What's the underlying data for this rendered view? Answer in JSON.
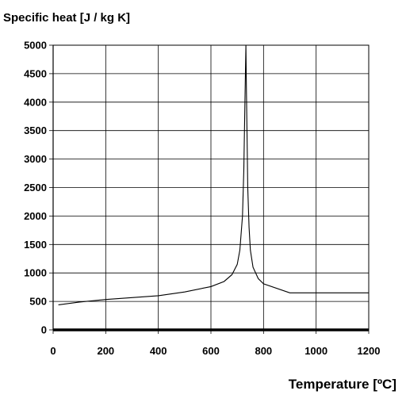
{
  "chart_data": {
    "type": "line",
    "ylabel": "Specific heat [J / kg K]",
    "xlabel": "Temperature [ºC]",
    "xlim": [
      0,
      1200
    ],
    "ylim": [
      0,
      5000
    ],
    "x_ticks": [
      0,
      200,
      400,
      600,
      800,
      1000,
      1200
    ],
    "y_ticks": [
      0,
      500,
      1000,
      1500,
      2000,
      2500,
      3000,
      3500,
      4000,
      4500,
      5000
    ],
    "grid": true,
    "legend": "none",
    "series": [
      {
        "x": [
          20,
          100,
          200,
          300,
          400,
          500,
          600,
          650,
          680,
          700,
          710,
          720,
          725,
          730,
          733,
          735,
          738,
          740,
          745,
          750,
          760,
          780,
          800,
          900,
          1000,
          1100,
          1200
        ],
        "y": [
          440,
          488,
          534,
          566,
          600,
          666,
          760,
          850,
          970,
          1150,
          1400,
          2000,
          2800,
          4200,
          5000,
          4200,
          3200,
          2500,
          1800,
          1400,
          1100,
          900,
          810,
          650,
          650,
          650,
          650
        ]
      }
    ]
  }
}
